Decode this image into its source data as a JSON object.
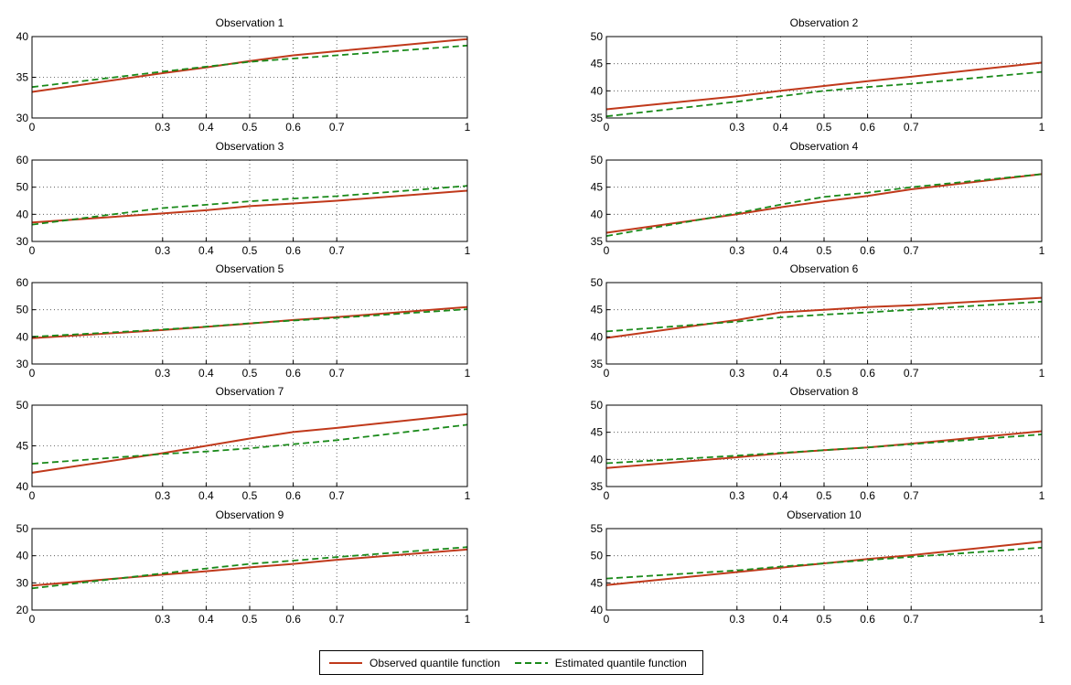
{
  "colors": {
    "observed": "#c0391b",
    "estimated": "#1a8a1a",
    "grid": "#444444",
    "axis": "#000000"
  },
  "legend": {
    "observed_label": "Observed quantile function",
    "estimated_label": "Estimated quantile function"
  },
  "chart_data": [
    {
      "type": "line",
      "title": "Observation 1",
      "xlim": [
        0,
        1
      ],
      "ylim": [
        30,
        40
      ],
      "xticks": [
        0,
        0.3,
        0.4,
        0.5,
        0.6,
        0.7,
        1
      ],
      "yticks": [
        30,
        35,
        40
      ],
      "grid": true,
      "series": [
        {
          "name": "Observed quantile function",
          "x": [
            0,
            0.3,
            0.4,
            0.5,
            0.6,
            0.7,
            1
          ],
          "values": [
            33.2,
            35.5,
            36.2,
            37.0,
            37.7,
            38.2,
            39.7
          ]
        },
        {
          "name": "Estimated quantile function",
          "x": [
            0,
            0.3,
            0.4,
            0.5,
            0.6,
            0.7,
            1
          ],
          "values": [
            33.8,
            35.7,
            36.3,
            36.9,
            37.3,
            37.7,
            38.9
          ]
        }
      ]
    },
    {
      "type": "line",
      "title": "Observation 2",
      "xlim": [
        0,
        1
      ],
      "ylim": [
        35,
        50
      ],
      "xticks": [
        0,
        0.3,
        0.4,
        0.5,
        0.6,
        0.7,
        1
      ],
      "yticks": [
        35,
        40,
        45,
        50
      ],
      "grid": true,
      "series": [
        {
          "name": "Observed quantile function",
          "x": [
            0,
            0.3,
            0.4,
            0.5,
            0.6,
            0.7,
            1
          ],
          "values": [
            36.6,
            39.0,
            40.0,
            40.9,
            41.8,
            42.6,
            45.2
          ]
        },
        {
          "name": "Estimated quantile function",
          "x": [
            0,
            0.3,
            0.4,
            0.5,
            0.6,
            0.7,
            1
          ],
          "values": [
            35.3,
            38.0,
            39.0,
            40.0,
            40.7,
            41.3,
            43.5
          ]
        }
      ]
    },
    {
      "type": "line",
      "title": "Observation 3",
      "xlim": [
        0,
        1
      ],
      "ylim": [
        30,
        60
      ],
      "xticks": [
        0,
        0.3,
        0.4,
        0.5,
        0.6,
        0.7,
        1
      ],
      "yticks": [
        30,
        40,
        50,
        60
      ],
      "grid": true,
      "series": [
        {
          "name": "Observed quantile function",
          "x": [
            0,
            0.3,
            0.4,
            0.5,
            0.6,
            0.7,
            1
          ],
          "values": [
            37.0,
            40.3,
            41.5,
            43.0,
            44.0,
            45.0,
            48.7
          ]
        },
        {
          "name": "Estimated quantile function",
          "x": [
            0,
            0.3,
            0.4,
            0.5,
            0.6,
            0.7,
            1
          ],
          "values": [
            36.2,
            42.3,
            43.5,
            44.8,
            45.8,
            46.7,
            50.5
          ]
        }
      ]
    },
    {
      "type": "line",
      "title": "Observation 4",
      "xlim": [
        0,
        1
      ],
      "ylim": [
        35,
        50
      ],
      "xticks": [
        0,
        0.3,
        0.4,
        0.5,
        0.6,
        0.7,
        1
      ],
      "yticks": [
        35,
        40,
        45,
        50
      ],
      "grid": true,
      "series": [
        {
          "name": "Observed quantile function",
          "x": [
            0,
            0.3,
            0.4,
            0.5,
            0.6,
            0.7,
            1
          ],
          "values": [
            36.6,
            40.0,
            41.3,
            42.4,
            43.4,
            44.6,
            47.4
          ]
        },
        {
          "name": "Estimated quantile function",
          "x": [
            0,
            0.3,
            0.4,
            0.5,
            0.6,
            0.7,
            1
          ],
          "values": [
            36.0,
            40.2,
            41.8,
            43.2,
            44.0,
            45.0,
            47.4
          ]
        }
      ]
    },
    {
      "type": "line",
      "title": "Observation 5",
      "xlim": [
        0,
        1
      ],
      "ylim": [
        30,
        60
      ],
      "xticks": [
        0,
        0.3,
        0.4,
        0.5,
        0.6,
        0.7,
        1
      ],
      "yticks": [
        30,
        40,
        50,
        60
      ],
      "grid": true,
      "series": [
        {
          "name": "Observed quantile function",
          "x": [
            0,
            0.3,
            0.4,
            0.5,
            0.6,
            0.7,
            1
          ],
          "values": [
            39.5,
            42.5,
            43.7,
            44.9,
            46.2,
            47.3,
            51.0
          ]
        },
        {
          "name": "Estimated quantile function",
          "x": [
            0,
            0.3,
            0.4,
            0.5,
            0.6,
            0.7,
            1
          ],
          "values": [
            40.0,
            42.7,
            43.8,
            45.0,
            46.0,
            47.0,
            50.2
          ]
        }
      ]
    },
    {
      "type": "line",
      "title": "Observation 6",
      "xlim": [
        0,
        1
      ],
      "ylim": [
        35,
        50
      ],
      "xticks": [
        0,
        0.3,
        0.4,
        0.5,
        0.6,
        0.7,
        1
      ],
      "yticks": [
        35,
        40,
        45,
        50
      ],
      "grid": true,
      "series": [
        {
          "name": "Observed quantile function",
          "x": [
            0,
            0.3,
            0.4,
            0.5,
            0.6,
            0.7,
            1
          ],
          "values": [
            39.8,
            43.1,
            44.5,
            45.0,
            45.5,
            45.8,
            47.2
          ]
        },
        {
          "name": "Estimated quantile function",
          "x": [
            0,
            0.3,
            0.4,
            0.5,
            0.6,
            0.7,
            1
          ],
          "values": [
            41.0,
            42.8,
            43.6,
            44.1,
            44.5,
            45.0,
            46.5
          ]
        }
      ]
    },
    {
      "type": "line",
      "title": "Observation 7",
      "xlim": [
        0,
        1
      ],
      "ylim": [
        40,
        50
      ],
      "xticks": [
        0,
        0.3,
        0.4,
        0.5,
        0.6,
        0.7,
        1
      ],
      "yticks": [
        40,
        45,
        50
      ],
      "grid": true,
      "series": [
        {
          "name": "Observed quantile function",
          "x": [
            0,
            0.3,
            0.4,
            0.5,
            0.6,
            0.7,
            1
          ],
          "values": [
            41.7,
            44.1,
            45.0,
            45.9,
            46.7,
            47.2,
            48.9
          ]
        },
        {
          "name": "Estimated quantile function",
          "x": [
            0,
            0.3,
            0.4,
            0.5,
            0.6,
            0.7,
            1
          ],
          "values": [
            42.8,
            44.0,
            44.3,
            44.7,
            45.2,
            45.7,
            47.6
          ]
        }
      ]
    },
    {
      "type": "line",
      "title": "Observation 8",
      "xlim": [
        0,
        1
      ],
      "ylim": [
        35,
        50
      ],
      "xticks": [
        0,
        0.3,
        0.4,
        0.5,
        0.6,
        0.7,
        1
      ],
      "yticks": [
        35,
        40,
        45,
        50
      ],
      "grid": true,
      "series": [
        {
          "name": "Observed quantile function",
          "x": [
            0,
            0.3,
            0.4,
            0.5,
            0.6,
            0.7,
            1
          ],
          "values": [
            38.4,
            40.4,
            41.1,
            41.7,
            42.2,
            42.9,
            45.2
          ]
        },
        {
          "name": "Estimated quantile function",
          "x": [
            0,
            0.3,
            0.4,
            0.5,
            0.6,
            0.7,
            1
          ],
          "values": [
            39.3,
            40.7,
            41.2,
            41.7,
            42.2,
            42.8,
            44.6
          ]
        }
      ]
    },
    {
      "type": "line",
      "title": "Observation 9",
      "xlim": [
        0,
        1
      ],
      "ylim": [
        20,
        50
      ],
      "xticks": [
        0,
        0.3,
        0.4,
        0.5,
        0.6,
        0.7,
        1
      ],
      "yticks": [
        20,
        30,
        40,
        50
      ],
      "grid": true,
      "series": [
        {
          "name": "Observed quantile function",
          "x": [
            0,
            0.3,
            0.4,
            0.5,
            0.6,
            0.7,
            1
          ],
          "values": [
            29.0,
            33.0,
            34.3,
            35.7,
            37.0,
            38.5,
            42.3
          ]
        },
        {
          "name": "Estimated quantile function",
          "x": [
            0,
            0.3,
            0.4,
            0.5,
            0.6,
            0.7,
            1
          ],
          "values": [
            28.0,
            33.5,
            35.3,
            37.0,
            38.2,
            39.5,
            43.2
          ]
        }
      ]
    },
    {
      "type": "line",
      "title": "Observation 10",
      "xlim": [
        0,
        1
      ],
      "ylim": [
        40,
        55
      ],
      "xticks": [
        0,
        0.3,
        0.4,
        0.5,
        0.6,
        0.7,
        1
      ],
      "yticks": [
        40,
        45,
        50,
        55
      ],
      "grid": true,
      "series": [
        {
          "name": "Observed quantile function",
          "x": [
            0,
            0.3,
            0.4,
            0.5,
            0.6,
            0.7,
            1
          ],
          "values": [
            44.6,
            47.0,
            47.8,
            48.6,
            49.4,
            50.1,
            52.6
          ]
        },
        {
          "name": "Estimated quantile function",
          "x": [
            0,
            0.3,
            0.4,
            0.5,
            0.6,
            0.7,
            1
          ],
          "values": [
            45.8,
            47.3,
            48.0,
            48.6,
            49.2,
            49.8,
            51.5
          ]
        }
      ]
    }
  ]
}
